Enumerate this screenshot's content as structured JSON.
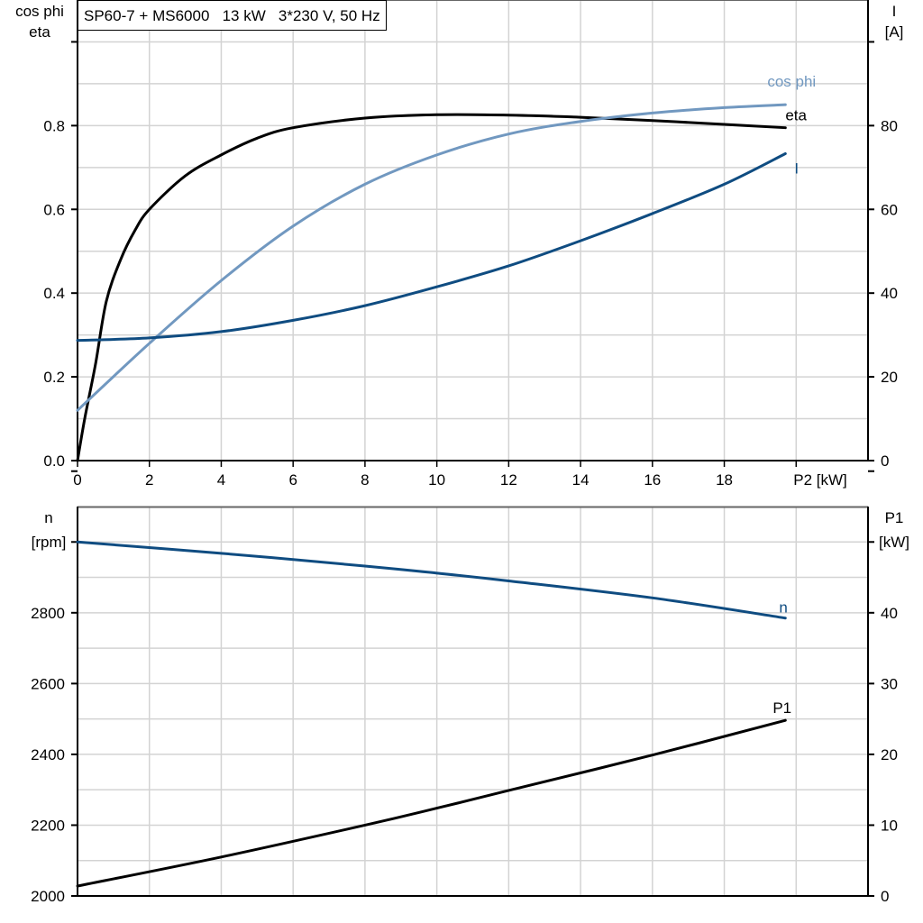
{
  "title": "SP60-7 + MS6000   13 kW   3*230 V, 50 Hz",
  "colors": {
    "eta": "#000000",
    "cos_phi": "#7198c0",
    "I": "#0f4c81",
    "n": "#0f4c81",
    "P1": "#000000",
    "grid": "#d3d3d3"
  },
  "chart_data": [
    {
      "type": "line",
      "xlabel": "P2 [kW]",
      "xlim": [
        0,
        22
      ],
      "x_ticks": [
        "0",
        "2",
        "4",
        "6",
        "8",
        "10",
        "12",
        "14",
        "16",
        "18"
      ],
      "left_axis": {
        "label_line1": "cos phi",
        "label_line2": "eta",
        "ylim": [
          0,
          1.1
        ],
        "ticks": [
          "0.0",
          "0.2",
          "0.4",
          "0.6",
          "0.8"
        ]
      },
      "right_axis": {
        "label_line1": "I",
        "label_line2": "[A]",
        "ylim": [
          0,
          110
        ],
        "ticks": [
          "0",
          "20",
          "40",
          "60",
          "80"
        ]
      },
      "grid": true,
      "series": [
        {
          "name": "eta",
          "axis": "left",
          "x": [
            0,
            0.2,
            0.5,
            0.8,
            1.2,
            1.6,
            2,
            3,
            4,
            5,
            6,
            8,
            10,
            12,
            14,
            16,
            18,
            19.7
          ],
          "y": [
            0,
            0.1,
            0.23,
            0.38,
            0.48,
            0.55,
            0.6,
            0.68,
            0.73,
            0.77,
            0.795,
            0.818,
            0.826,
            0.825,
            0.82,
            0.812,
            0.803,
            0.795
          ]
        },
        {
          "name": "cos phi",
          "axis": "left",
          "x": [
            0,
            2,
            4,
            6,
            8,
            10,
            12,
            14,
            16,
            18,
            19.7
          ],
          "y": [
            0.12,
            0.28,
            0.43,
            0.56,
            0.66,
            0.73,
            0.78,
            0.81,
            0.83,
            0.843,
            0.85
          ]
        },
        {
          "name": "I",
          "axis": "right",
          "x": [
            0,
            2,
            4,
            6,
            8,
            10,
            12,
            14,
            16,
            18,
            19.7
          ],
          "y": [
            28.7,
            29.3,
            30.8,
            33.5,
            37,
            41.5,
            46.5,
            52.5,
            59,
            66,
            73.3
          ]
        }
      ]
    },
    {
      "type": "line",
      "xlim": [
        0,
        22
      ],
      "left_axis": {
        "label_line1": "n",
        "label_line2": "[rpm]",
        "ylim": [
          2000,
          3100
        ],
        "ticks": [
          "2000",
          "2200",
          "2400",
          "2600",
          "2800"
        ]
      },
      "right_axis": {
        "label_line1": "P1",
        "label_line2": "[kW]",
        "ylim": [
          0,
          55
        ],
        "ticks": [
          "0",
          "10",
          "20",
          "30",
          "40"
        ]
      },
      "grid": true,
      "series": [
        {
          "name": "n",
          "axis": "left",
          "x": [
            0,
            4,
            8,
            10,
            12,
            16,
            19.7
          ],
          "y": [
            3000,
            2968,
            2932,
            2912,
            2890,
            2842,
            2785
          ]
        },
        {
          "name": "P1",
          "axis": "right",
          "x": [
            0,
            4,
            8,
            10,
            12,
            16,
            19.7
          ],
          "y": [
            1.4,
            5.5,
            10,
            12.4,
            14.9,
            19.9,
            24.8
          ]
        }
      ]
    }
  ]
}
